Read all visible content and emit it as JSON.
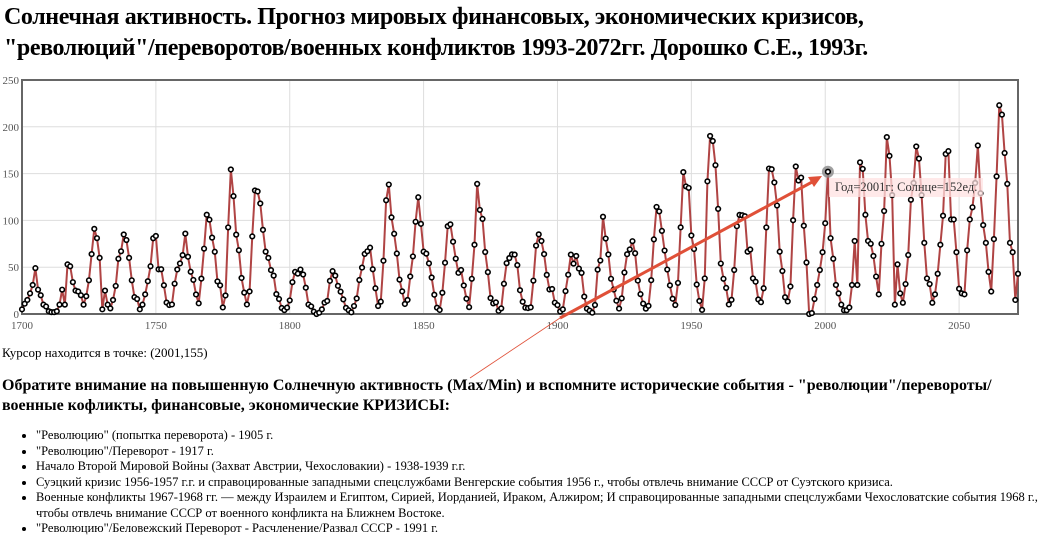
{
  "title": {
    "line1": "Солнечная активность. Прогноз мировых финансовых, экономических кризисов,",
    "line2": "\"революций\"/переворотов/военных конфликтов 1993-2072гг. Дорошко С.Е., 1993г."
  },
  "tooltip": "Год=2001г: Солнце=152ед.",
  "cursor_text": "Курсор находится в точке: (2001,155)",
  "note": "Обратите внимание на повышенную Солнечную активность (Max/Min) и вспомните исторические события - \"революции\"/перевороты/военные кофликты, финансовые, экономические КРИЗИСЫ:",
  "events": [
    "\"Революцию\" (попытка переворота) - 1905 г.",
    "\"Революцию\"/Переворот - 1917 г.",
    "Начало Второй Мировой Войны (Захват Австрии, Чехословакии) - 1938-1939 г.г.",
    "Суэцкий кризис 1956-1957 г.г. и справоцированные западными спецслужбами Венгерские события 1956 г., чтобы отвлечь внимание СССР от Суэтского кризиса.",
    "Военные конфликты 1967-1968 гг. — между Израилем и Египтом, Сирией, Иорданией, Ираком, Алжиром; И справоцированные западными спецслужбами Чехословатские события 1968 г., чтобы отвлечь внимание СССР от военного конфликта на Ближнем Востоке.",
    "\"Революцию\"/Беловежский Переворот - Расчленение/Развал СССР - 1991 г."
  ],
  "colors": {
    "line": "#b04444",
    "marker": "#000000",
    "arrow": "#e05038",
    "grid": "#dddddd",
    "frame": "#666666"
  },
  "chart_data": {
    "type": "line",
    "title": "",
    "xlabel": "",
    "ylabel": "",
    "xlim": [
      1700,
      2072
    ],
    "ylim": [
      0,
      250
    ],
    "xticks": [
      "1700",
      "1750",
      "1800",
      "1850",
      "1900",
      "1950",
      "2000",
      "2050"
    ],
    "yticks": [
      "0",
      "50",
      "100",
      "150",
      "200",
      "250"
    ],
    "grid": true,
    "highlight": {
      "x": 2001,
      "y": 152
    },
    "x_start": 1700,
    "values": [
      5,
      11,
      15,
      22,
      31,
      49,
      26,
      20,
      10,
      8,
      3,
      2,
      2,
      3,
      10,
      26,
      10,
      53,
      51,
      34,
      25,
      24,
      20,
      10,
      19,
      36,
      64,
      91,
      81,
      60,
      5,
      25,
      10,
      6,
      15,
      30,
      59,
      67,
      85,
      79,
      60,
      36,
      18,
      16,
      5,
      10,
      21,
      35,
      51,
      80.9,
      83.4,
      47.7,
      47.8,
      30.7,
      12.2,
      9.6,
      10.2,
      32.4,
      47.6,
      54,
      62.9,
      85.9,
      61.2,
      45.1,
      36.4,
      20.9,
      11.4,
      37.8,
      69.8,
      106.1,
      100.8,
      81.6,
      66.5,
      34.8,
      30.6,
      7,
      19.8,
      92.5,
      154.4,
      125.9,
      84.8,
      68.1,
      38.5,
      22.8,
      10.2,
      24.1,
      82.9,
      132,
      130.9,
      118.1,
      89.9,
      66.6,
      60,
      46.9,
      41,
      21.3,
      16,
      6.4,
      4.1,
      6.8,
      14.5,
      34,
      45,
      43.1,
      47.5,
      42.2,
      28.1,
      10.1,
      8.1,
      2.5,
      0,
      1.4,
      5,
      12.2,
      13.9,
      35.4,
      45.8,
      41,
      30.1,
      23.9,
      15.6,
      6.6,
      4,
      1.8,
      8.5,
      16.6,
      36.3,
      49.6,
      64.2,
      67,
      70.9,
      47.8,
      27.5,
      8.5,
      13.2,
      56.9,
      121.5,
      138.3,
      103.2,
      85.7,
      64.6,
      36.7,
      24.2,
      10.7,
      15,
      40.1,
      61.5,
      98.5,
      124.7,
      96.3,
      66.6,
      64.5,
      54.1,
      39,
      20.6,
      6.7,
      4.3,
      22.7,
      54.8,
      93.8,
      95.8,
      77.2,
      59.1,
      44,
      47,
      30.5,
      16.3,
      7.3,
      37.6,
      74,
      139,
      111.2,
      101.6,
      66.2,
      44.7,
      17,
      11.3,
      12.4,
      3.4,
      6,
      32.3,
      54.3,
      59.7,
      63.7,
      63.5,
      52.2,
      25.4,
      13.1,
      6.8,
      6.3,
      7.1,
      35.6,
      73,
      85.1,
      78,
      64,
      41.8,
      26.2,
      26.7,
      12.1,
      9.5,
      2.7,
      5,
      24.4,
      42,
      63.5,
      53.8,
      62,
      48.5,
      43.9,
      18.6,
      5.7,
      3.6,
      1.4,
      9.6,
      47.4,
      57.1,
      103.9,
      80.6,
      63.6,
      37.6,
      26.1,
      14.2,
      5.8,
      16.7,
      44.3,
      63.9,
      69,
      77.8,
      64.9,
      35.7,
      21.2,
      11.1,
      5.7,
      8.7,
      36.1,
      79.7,
      114.4,
      109.6,
      88.8,
      67.8,
      47.5,
      30.6,
      16.3,
      9.6,
      33.2,
      92.6,
      151.6,
      136.3,
      134.7,
      83.9,
      69.4,
      31.5,
      13.9,
      4.4,
      38,
      141.7,
      190.2,
      184.8,
      159,
      112.3,
      53.9,
      37.6,
      27.9,
      10.2,
      15.1,
      47,
      93.8,
      105.9,
      105.5,
      104.5,
      66.6,
      68.9,
      38,
      34.5,
      15.5,
      12.6,
      27.5,
      92.5,
      155.4,
      154.7,
      140.5,
      115.9,
      66.6,
      45.9,
      17.9,
      13.4,
      29.4,
      100.2,
      157.6,
      142.6,
      145.7,
      94.3,
      55,
      0,
      1,
      16,
      31,
      47,
      66,
      97,
      152,
      81,
      59,
      31,
      22,
      10,
      4,
      4,
      7,
      31,
      78,
      31,
      162,
      155,
      106,
      78,
      75,
      62,
      40,
      21,
      75,
      110,
      189,
      169,
      127,
      10,
      53,
      22,
      12,
      32,
      63,
      122,
      140,
      179,
      166,
      127,
      76,
      38,
      32,
      12,
      21,
      43,
      74,
      105,
      171,
      174,
      101,
      101,
      66,
      27,
      22,
      21,
      68,
      101,
      114,
      140,
      180,
      129,
      95,
      76,
      45,
      24,
      80,
      147,
      223,
      213,
      172,
      139,
      76,
      66,
      15,
      43
    ]
  }
}
